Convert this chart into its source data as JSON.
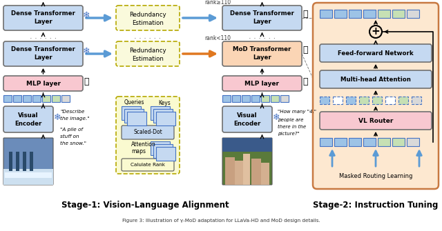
{
  "title": "Figure 3: Illustration of γ-MoD adaptation for LLaVa-HD and MoD design details.",
  "stage1_label": "Stage-1: Vision-Language Alignment",
  "stage2_label": "Stage-2: Instruction Tuning",
  "bg_color": "#ffffff",
  "box_blue_light": "#c5d9f1",
  "box_blue_mid": "#9dc3e6",
  "box_pink": "#f4b8c1",
  "box_peach": "#fbd5b5",
  "box_green_light": "#c6e0b4",
  "box_gray": "#d9d9d9",
  "arrow_blue": "#5b9bd5",
  "arrow_orange": "#ed7d31",
  "stage2_bg": "#fde8d0",
  "stage2_border": "#c87941",
  "tok_blue": "#9dc3e6",
  "tok_green": "#c6e0b4",
  "tok_gray": "#d9d9d9",
  "dashed_yellow_bg": "#fafadc",
  "dashed_yellow_border": "#b5a800"
}
